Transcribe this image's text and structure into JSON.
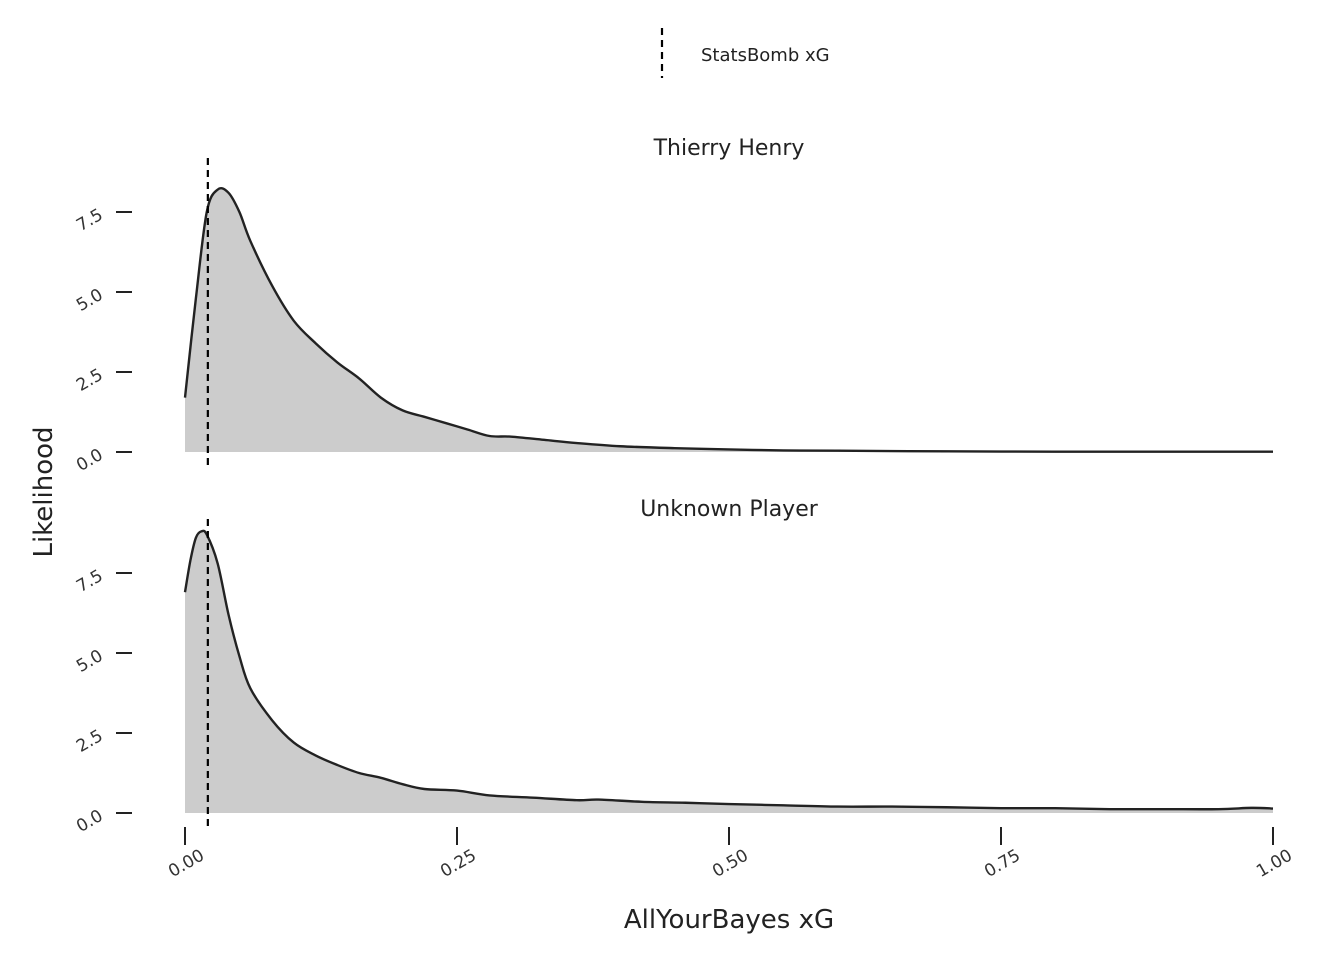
{
  "chart_data": {
    "type": "area",
    "xlabel": "AllYourBayes xG",
    "ylabel": "Likelihood",
    "xlim": [
      0,
      1
    ],
    "ylim": [
      0,
      8.8
    ],
    "x_ticks": [
      "0.00",
      "0.25",
      "0.50",
      "0.75",
      "1.00"
    ],
    "x_tick_values": [
      0,
      0.25,
      0.5,
      0.75,
      1.0
    ],
    "y_ticks": [
      "0.0",
      "2.5",
      "5.0",
      "7.5"
    ],
    "y_tick_values": [
      0,
      2.5,
      5.0,
      7.5
    ],
    "legend": {
      "placement": "top",
      "entries": [
        {
          "label": "StatsBomb xG",
          "style": "dashed-vertical-line"
        }
      ]
    },
    "fill_color": "#cccccc",
    "line_color": "#222222",
    "reference_line_color": "#000000",
    "grid": false,
    "facets": [
      {
        "title": "Thierry Henry",
        "statsbomb_xg": 0.021,
        "x": [
          0,
          0.01,
          0.02,
          0.03,
          0.04,
          0.05,
          0.06,
          0.08,
          0.1,
          0.12,
          0.14,
          0.16,
          0.18,
          0.2,
          0.22,
          0.24,
          0.26,
          0.28,
          0.3,
          0.33,
          0.36,
          0.4,
          0.45,
          0.5,
          0.55,
          0.6,
          0.7,
          0.8,
          0.9,
          1.0
        ],
        "y": [
          1.7,
          4.8,
          7.5,
          8.2,
          8.1,
          7.5,
          6.6,
          5.2,
          4.1,
          3.4,
          2.8,
          2.3,
          1.7,
          1.3,
          1.1,
          0.9,
          0.7,
          0.5,
          0.48,
          0.38,
          0.28,
          0.18,
          0.12,
          0.08,
          0.05,
          0.04,
          0.02,
          0.01,
          0.01,
          0.01
        ]
      },
      {
        "title": "Unknown Player",
        "statsbomb_xg": 0.021,
        "x": [
          0,
          0.005,
          0.01,
          0.015,
          0.02,
          0.03,
          0.04,
          0.05,
          0.06,
          0.08,
          0.1,
          0.12,
          0.14,
          0.16,
          0.18,
          0.2,
          0.22,
          0.25,
          0.28,
          0.32,
          0.36,
          0.38,
          0.42,
          0.46,
          0.5,
          0.55,
          0.6,
          0.65,
          0.7,
          0.75,
          0.8,
          0.85,
          0.9,
          0.95,
          0.98,
          1.0
        ],
        "y": [
          6.9,
          7.9,
          8.6,
          8.8,
          8.7,
          7.8,
          6.2,
          4.9,
          3.9,
          2.9,
          2.2,
          1.8,
          1.5,
          1.25,
          1.1,
          0.9,
          0.75,
          0.7,
          0.55,
          0.48,
          0.4,
          0.42,
          0.35,
          0.32,
          0.28,
          0.24,
          0.2,
          0.2,
          0.18,
          0.15,
          0.15,
          0.12,
          0.12,
          0.12,
          0.16,
          0.14
        ]
      }
    ]
  }
}
